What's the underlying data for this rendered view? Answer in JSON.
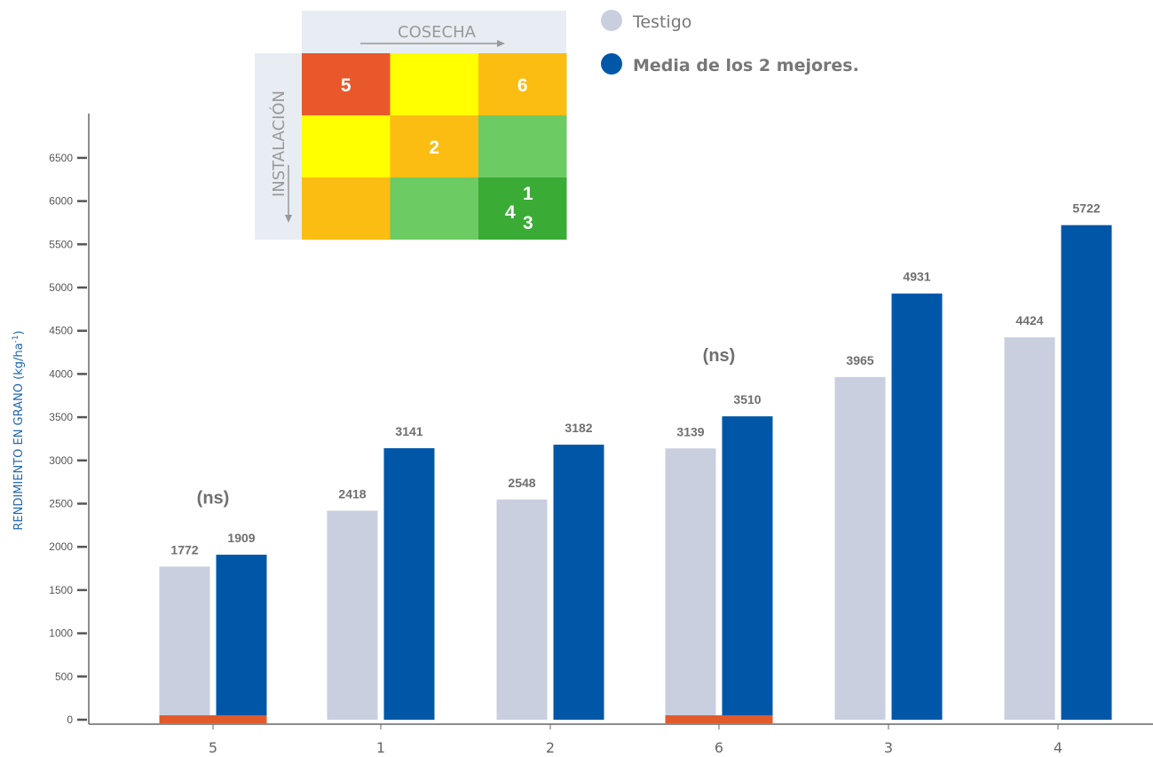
{
  "chart_data": {
    "type": "bar",
    "ylabel": "RENDIMIENTO EN GRANO (kg/ha",
    "ylabel_superscript": "-1",
    "ylabel_close": ")",
    "ylim": [
      0,
      7000
    ],
    "yticks": [
      0,
      500,
      1000,
      1500,
      2000,
      2500,
      3000,
      3500,
      4000,
      4500,
      5000,
      5500,
      6000,
      6500
    ],
    "categories": [
      "5",
      "1",
      "2",
      "6",
      "3",
      "4"
    ],
    "series": [
      {
        "name": "Testigo",
        "color": "#c9cfdf",
        "values": [
          1772,
          2418,
          2548,
          3139,
          3965,
          4424
        ]
      },
      {
        "name": "Media de los 2 mejores.",
        "color": "#0057a8",
        "values": [
          1909,
          3141,
          3182,
          3510,
          4931,
          5722
        ]
      }
    ],
    "value_labels": {
      "Testigo": [
        "1772",
        "2418",
        "2548",
        "3139",
        "3965",
        "4424"
      ],
      "Media de los 2 mejores.": [
        "1909",
        "3141",
        "3182",
        "3510",
        "4931",
        "5722"
      ]
    },
    "annotations": [
      {
        "text": "(ns)",
        "category": "5",
        "y": 2500
      },
      {
        "text": "(ns)",
        "category": "6",
        "y": 4150
      }
    ],
    "ns_marker_color": "#e05a2b",
    "ns_categories": [
      "5",
      "6"
    ],
    "legend": "top-right",
    "grid": false
  },
  "matrix": {
    "header_top": "COSECHA",
    "header_left": "INSTALACIÓN",
    "rows": [
      [
        {
          "color": "#e9582b",
          "label": "5"
        },
        {
          "color": "#ffff00",
          "label": ""
        },
        {
          "color": "#fbbd12",
          "label": "6"
        }
      ],
      [
        {
          "color": "#ffff00",
          "label": ""
        },
        {
          "color": "#fbbd12",
          "label": "2"
        },
        {
          "color": "#6ccb62",
          "label": ""
        }
      ],
      [
        {
          "color": "#fbbd12",
          "label": ""
        },
        {
          "color": "#6ccb62",
          "label": ""
        },
        {
          "color": "#3aab35",
          "label": "4 1 3"
        }
      ]
    ]
  }
}
